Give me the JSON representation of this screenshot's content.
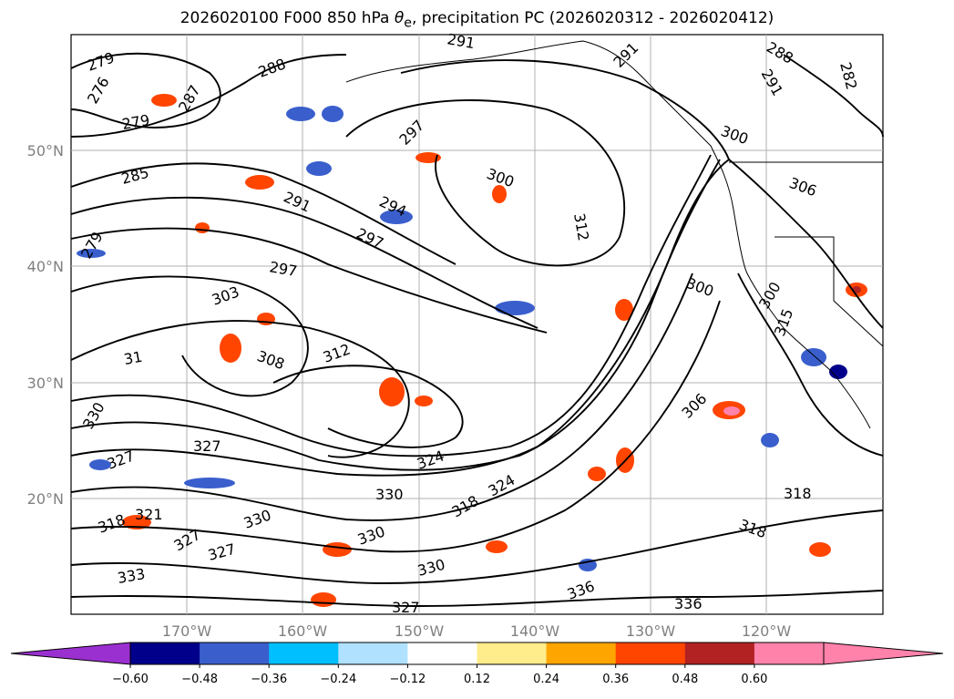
{
  "title": {
    "prefix": "2026020100 F000 850 hPa ",
    "theta": "θ",
    "sub": "e",
    "suffix": ", precipitation PC (2026020312 - 2026020412)"
  },
  "lat_ticks": [
    "50°N",
    "40°N",
    "30°N",
    "20°N"
  ],
  "lon_ticks": [
    "170°W",
    "160°W",
    "150°W",
    "140°W",
    "130°W",
    "120°W"
  ],
  "contour_labels": [
    "279",
    "276",
    "287",
    "288",
    "291",
    "291",
    "288",
    "291",
    "282",
    "285",
    "279",
    "279",
    "297",
    "300",
    "291",
    "294",
    "297",
    "297",
    "300",
    "300",
    "306",
    "303",
    "312",
    "31",
    "308",
    "312",
    "300",
    "306",
    "330",
    "327",
    "327",
    "330",
    "318",
    "321",
    "327",
    "327",
    "330",
    "330",
    "318",
    "330",
    "333",
    "327",
    "336",
    "336",
    "318",
    "318",
    "324",
    "315",
    "324"
  ],
  "colorbar": {
    "ticks": [
      "−0.60",
      "−0.48",
      "−0.36",
      "−0.24",
      "−0.12",
      "0.12",
      "0.24",
      "0.36",
      "0.48",
      "0.60"
    ],
    "colors": [
      "#9b30d0",
      "#00008b",
      "#3a5fcd",
      "#00bfff",
      "#b0e2ff",
      "#ffffff",
      "#ffec8b",
      "#ffa500",
      "#ff4500",
      "#b22222",
      "#ff82ab",
      "#ff82ab"
    ]
  },
  "map_data": {
    "lon_range": [
      -180,
      -110
    ],
    "lat_range": [
      10,
      60
    ],
    "gridlines": true
  }
}
